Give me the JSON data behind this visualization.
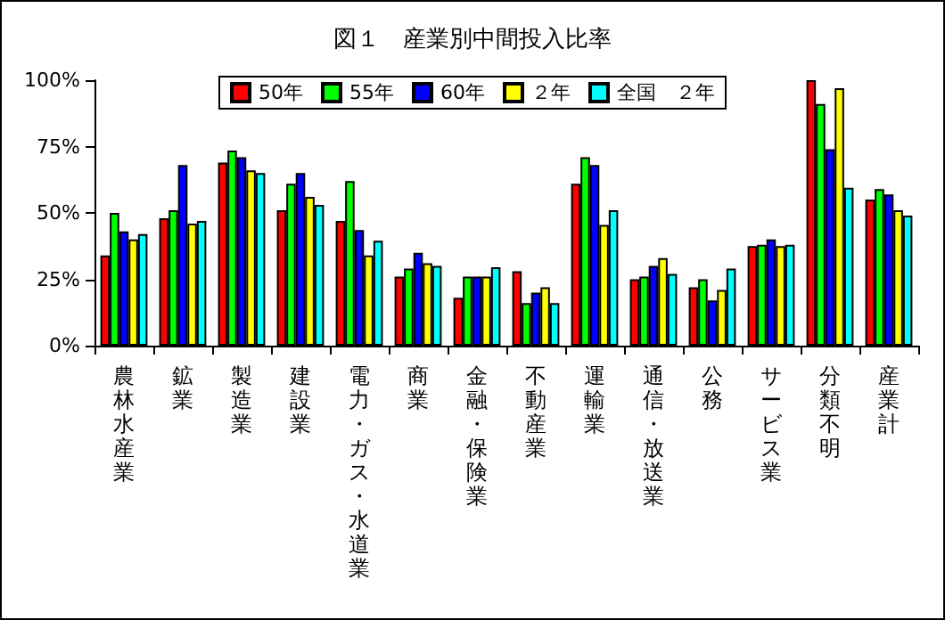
{
  "chart_data": {
    "type": "bar",
    "title": "図１　産業別中間投入比率",
    "categories": [
      "農林水産業",
      "鉱業",
      "製造業",
      "建設業",
      "電力・ガス・水道業",
      "商業",
      "金融・保険業",
      "不動産業",
      "運輸業",
      "通信・放送業",
      "公務",
      "サービス業",
      "分類不明",
      "産業計"
    ],
    "series": [
      {
        "name": "50年",
        "color": "#ff0000",
        "values": [
          34,
          48,
          69,
          51,
          47,
          26,
          18,
          28,
          61,
          25,
          22,
          37.5,
          100,
          55
        ]
      },
      {
        "name": "55年",
        "color": "#00ff00",
        "values": [
          50,
          51,
          73.5,
          61,
          62,
          29,
          26,
          16,
          71,
          26,
          25,
          38,
          91,
          59
        ]
      },
      {
        "name": "60年",
        "color": "#0000ff",
        "values": [
          43,
          68,
          71,
          65,
          43.5,
          35,
          26,
          20,
          68,
          30,
          17,
          40,
          74,
          57
        ]
      },
      {
        "name": "２年",
        "color": "#ffff00",
        "values": [
          40,
          46,
          66,
          56,
          34,
          31,
          26,
          22,
          45.5,
          33,
          21,
          37.5,
          97,
          51
        ]
      },
      {
        "name": "全国　２年",
        "color": "#00ffff",
        "values": [
          42,
          47,
          65,
          53,
          39.5,
          30,
          29.5,
          16,
          51,
          27,
          29,
          38,
          59.5,
          49
        ]
      }
    ],
    "ylim": [
      0,
      100
    ],
    "yticks": [
      {
        "value": 0,
        "label": "0%"
      },
      {
        "value": 25,
        "label": "25%"
      },
      {
        "value": 50,
        "label": "50%"
      },
      {
        "value": 75,
        "label": "75%"
      },
      {
        "value": 100,
        "label": "100%"
      }
    ],
    "grid": false,
    "legend": "top"
  }
}
